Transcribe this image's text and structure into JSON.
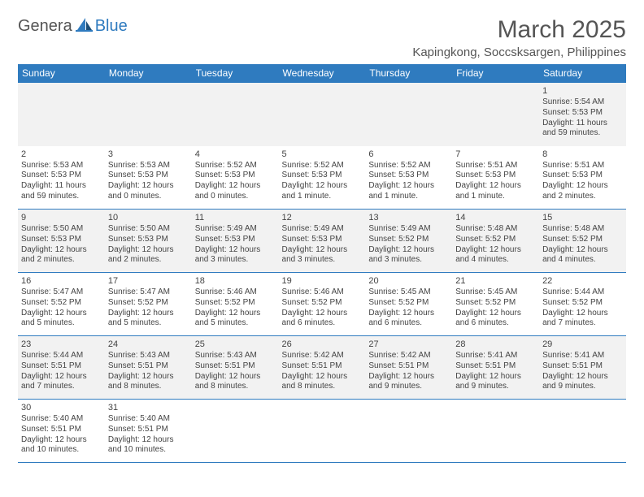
{
  "header": {
    "logo_part1": "Genera",
    "logo_part2": "Blue",
    "month_title": "March 2025",
    "location": "Kapingkong, Soccsksargen, Philippines"
  },
  "style": {
    "accent_color": "#2F7BBF",
    "alt_row_bg": "#f2f2f2",
    "text_color": "#444444",
    "header_text": "#555555",
    "title_fontsize": 30,
    "location_fontsize": 15,
    "dayheader_fontsize": 12,
    "cell_fontsize": 10
  },
  "calendar": {
    "type": "table",
    "day_headers": [
      "Sunday",
      "Monday",
      "Tuesday",
      "Wednesday",
      "Thursday",
      "Friday",
      "Saturday"
    ],
    "weeks": [
      [
        null,
        null,
        null,
        null,
        null,
        null,
        {
          "n": "1",
          "sr": "Sunrise: 5:54 AM",
          "ss": "Sunset: 5:53 PM",
          "dl": "Daylight: 11 hours and 59 minutes."
        }
      ],
      [
        {
          "n": "2",
          "sr": "Sunrise: 5:53 AM",
          "ss": "Sunset: 5:53 PM",
          "dl": "Daylight: 11 hours and 59 minutes."
        },
        {
          "n": "3",
          "sr": "Sunrise: 5:53 AM",
          "ss": "Sunset: 5:53 PM",
          "dl": "Daylight: 12 hours and 0 minutes."
        },
        {
          "n": "4",
          "sr": "Sunrise: 5:52 AM",
          "ss": "Sunset: 5:53 PM",
          "dl": "Daylight: 12 hours and 0 minutes."
        },
        {
          "n": "5",
          "sr": "Sunrise: 5:52 AM",
          "ss": "Sunset: 5:53 PM",
          "dl": "Daylight: 12 hours and 1 minute."
        },
        {
          "n": "6",
          "sr": "Sunrise: 5:52 AM",
          "ss": "Sunset: 5:53 PM",
          "dl": "Daylight: 12 hours and 1 minute."
        },
        {
          "n": "7",
          "sr": "Sunrise: 5:51 AM",
          "ss": "Sunset: 5:53 PM",
          "dl": "Daylight: 12 hours and 1 minute."
        },
        {
          "n": "8",
          "sr": "Sunrise: 5:51 AM",
          "ss": "Sunset: 5:53 PM",
          "dl": "Daylight: 12 hours and 2 minutes."
        }
      ],
      [
        {
          "n": "9",
          "sr": "Sunrise: 5:50 AM",
          "ss": "Sunset: 5:53 PM",
          "dl": "Daylight: 12 hours and 2 minutes."
        },
        {
          "n": "10",
          "sr": "Sunrise: 5:50 AM",
          "ss": "Sunset: 5:53 PM",
          "dl": "Daylight: 12 hours and 2 minutes."
        },
        {
          "n": "11",
          "sr": "Sunrise: 5:49 AM",
          "ss": "Sunset: 5:53 PM",
          "dl": "Daylight: 12 hours and 3 minutes."
        },
        {
          "n": "12",
          "sr": "Sunrise: 5:49 AM",
          "ss": "Sunset: 5:53 PM",
          "dl": "Daylight: 12 hours and 3 minutes."
        },
        {
          "n": "13",
          "sr": "Sunrise: 5:49 AM",
          "ss": "Sunset: 5:52 PM",
          "dl": "Daylight: 12 hours and 3 minutes."
        },
        {
          "n": "14",
          "sr": "Sunrise: 5:48 AM",
          "ss": "Sunset: 5:52 PM",
          "dl": "Daylight: 12 hours and 4 minutes."
        },
        {
          "n": "15",
          "sr": "Sunrise: 5:48 AM",
          "ss": "Sunset: 5:52 PM",
          "dl": "Daylight: 12 hours and 4 minutes."
        }
      ],
      [
        {
          "n": "16",
          "sr": "Sunrise: 5:47 AM",
          "ss": "Sunset: 5:52 PM",
          "dl": "Daylight: 12 hours and 5 minutes."
        },
        {
          "n": "17",
          "sr": "Sunrise: 5:47 AM",
          "ss": "Sunset: 5:52 PM",
          "dl": "Daylight: 12 hours and 5 minutes."
        },
        {
          "n": "18",
          "sr": "Sunrise: 5:46 AM",
          "ss": "Sunset: 5:52 PM",
          "dl": "Daylight: 12 hours and 5 minutes."
        },
        {
          "n": "19",
          "sr": "Sunrise: 5:46 AM",
          "ss": "Sunset: 5:52 PM",
          "dl": "Daylight: 12 hours and 6 minutes."
        },
        {
          "n": "20",
          "sr": "Sunrise: 5:45 AM",
          "ss": "Sunset: 5:52 PM",
          "dl": "Daylight: 12 hours and 6 minutes."
        },
        {
          "n": "21",
          "sr": "Sunrise: 5:45 AM",
          "ss": "Sunset: 5:52 PM",
          "dl": "Daylight: 12 hours and 6 minutes."
        },
        {
          "n": "22",
          "sr": "Sunrise: 5:44 AM",
          "ss": "Sunset: 5:52 PM",
          "dl": "Daylight: 12 hours and 7 minutes."
        }
      ],
      [
        {
          "n": "23",
          "sr": "Sunrise: 5:44 AM",
          "ss": "Sunset: 5:51 PM",
          "dl": "Daylight: 12 hours and 7 minutes."
        },
        {
          "n": "24",
          "sr": "Sunrise: 5:43 AM",
          "ss": "Sunset: 5:51 PM",
          "dl": "Daylight: 12 hours and 8 minutes."
        },
        {
          "n": "25",
          "sr": "Sunrise: 5:43 AM",
          "ss": "Sunset: 5:51 PM",
          "dl": "Daylight: 12 hours and 8 minutes."
        },
        {
          "n": "26",
          "sr": "Sunrise: 5:42 AM",
          "ss": "Sunset: 5:51 PM",
          "dl": "Daylight: 12 hours and 8 minutes."
        },
        {
          "n": "27",
          "sr": "Sunrise: 5:42 AM",
          "ss": "Sunset: 5:51 PM",
          "dl": "Daylight: 12 hours and 9 minutes."
        },
        {
          "n": "28",
          "sr": "Sunrise: 5:41 AM",
          "ss": "Sunset: 5:51 PM",
          "dl": "Daylight: 12 hours and 9 minutes."
        },
        {
          "n": "29",
          "sr": "Sunrise: 5:41 AM",
          "ss": "Sunset: 5:51 PM",
          "dl": "Daylight: 12 hours and 9 minutes."
        }
      ],
      [
        {
          "n": "30",
          "sr": "Sunrise: 5:40 AM",
          "ss": "Sunset: 5:51 PM",
          "dl": "Daylight: 12 hours and 10 minutes."
        },
        {
          "n": "31",
          "sr": "Sunrise: 5:40 AM",
          "ss": "Sunset: 5:51 PM",
          "dl": "Daylight: 12 hours and 10 minutes."
        },
        null,
        null,
        null,
        null,
        null
      ]
    ]
  }
}
